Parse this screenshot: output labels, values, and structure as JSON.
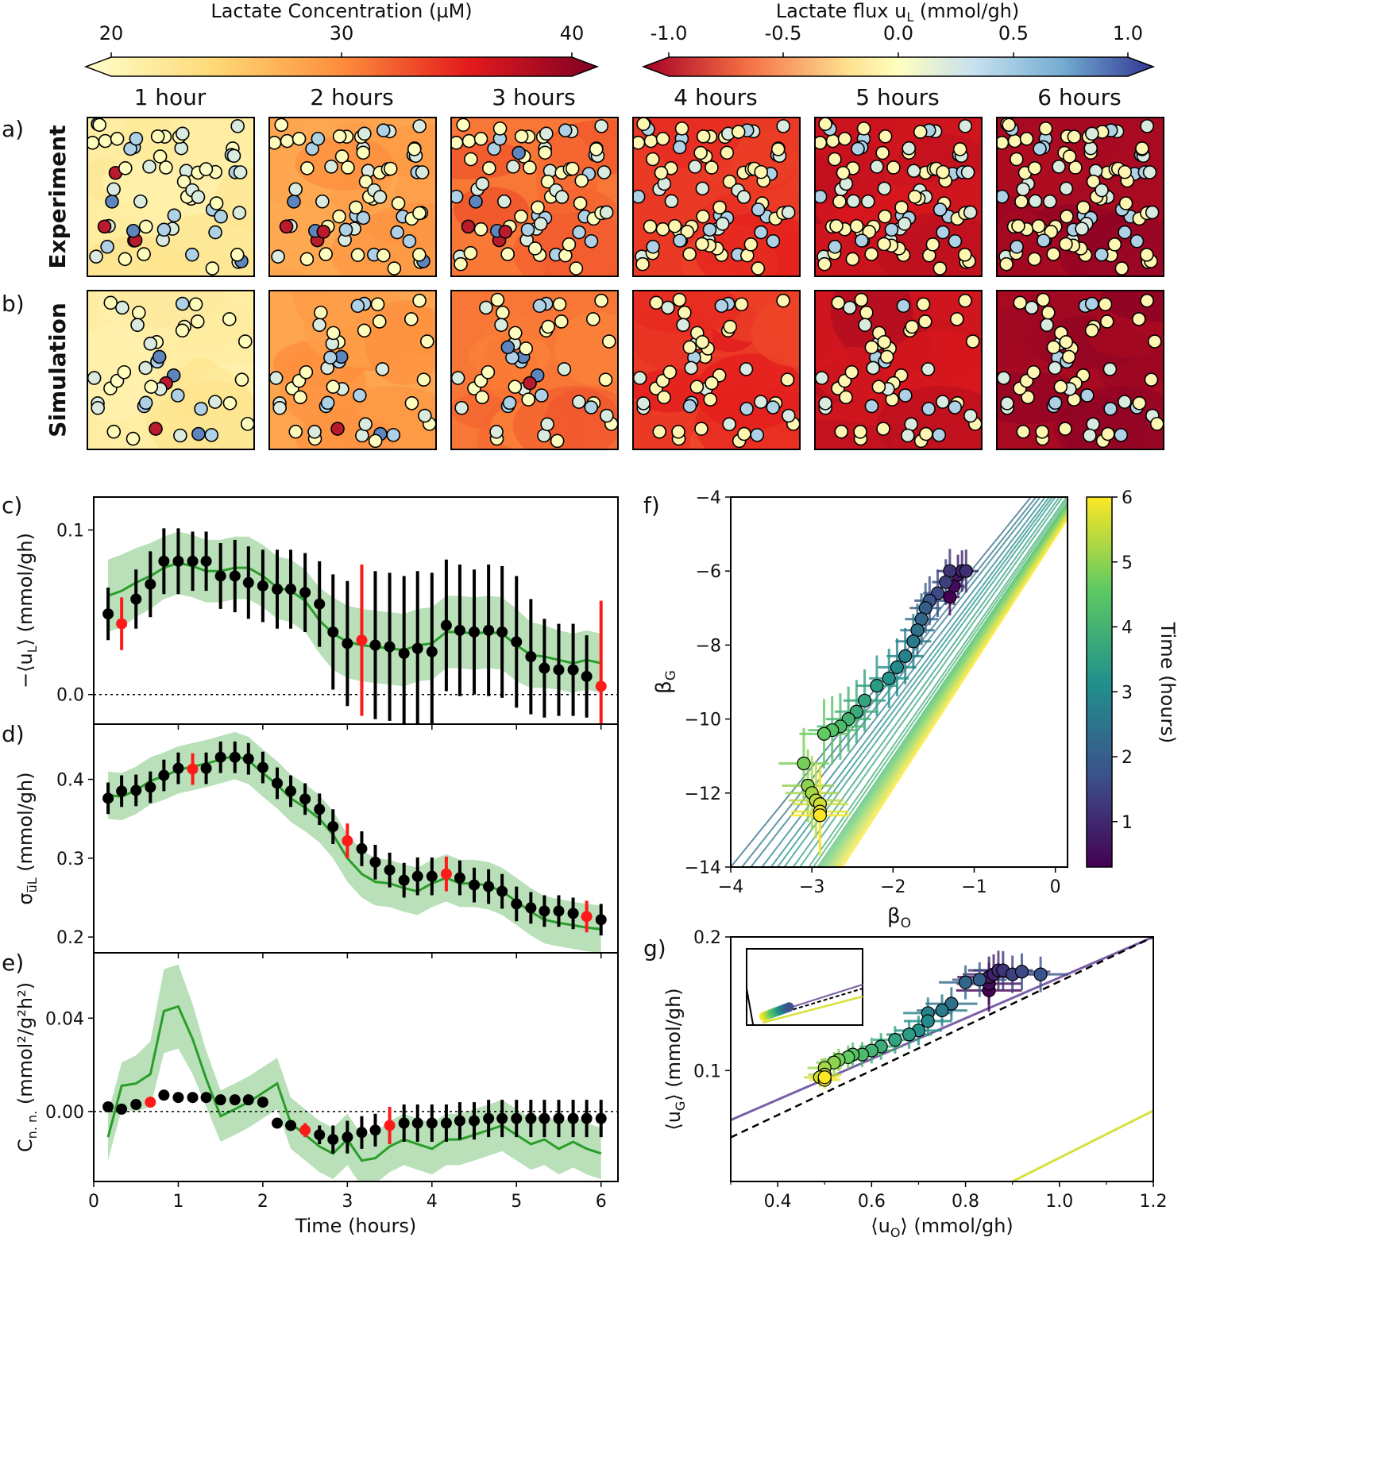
{
  "colorbars": {
    "conc": {
      "label": "Lactate Concentration (µM)",
      "ticks": [
        "20",
        "30",
        "40"
      ],
      "range": [
        20,
        40
      ]
    },
    "flux": {
      "label": "Lactate flux u",
      "label_sub": "L",
      "label_unit": " (mmol/gh)",
      "ticks": [
        "-1.0",
        "-0.5",
        "0.0",
        "0.5",
        "1.0"
      ],
      "range": [
        -1,
        1
      ]
    },
    "time": {
      "label": "Time (hours)",
      "ticks": [
        "1",
        "2",
        "3",
        "4",
        "5",
        "6"
      ]
    }
  },
  "panel_labels": {
    "a": "a)",
    "b": "b)",
    "c": "c)",
    "d": "d)",
    "e": "e)",
    "f": "f)",
    "g": "g)"
  },
  "row_labels": {
    "experiment": "Experiment",
    "simulation": "Simulation"
  },
  "snapshot_titles": [
    "1 hour",
    "2 hours",
    "3 hours",
    "4 hours",
    "5 hours",
    "6 hours"
  ],
  "snapshot_levels": [
    0.12,
    0.42,
    0.55,
    0.68,
    0.8,
    0.9
  ],
  "colors": {
    "green": "#2a9d2a",
    "green_band": "#a8d8a8",
    "red": "#ff1a1a",
    "black": "#000000",
    "purple": "#7b5fa6"
  },
  "chart_data": [
    {
      "id": "c",
      "type": "scatter",
      "ylabel": "−⟨u",
      "ylabel_sub": "L",
      "ylabel_unit": "⟩ (mmol/gh)",
      "xlabel": "",
      "ylim": [
        -0.018,
        0.12
      ],
      "xlim": [
        0,
        6.2
      ],
      "yticks": [
        "0.0",
        "0.1"
      ],
      "x": [
        0.17,
        0.33,
        0.5,
        0.67,
        0.83,
        1.0,
        1.17,
        1.33,
        1.5,
        1.67,
        1.83,
        2.0,
        2.17,
        2.33,
        2.5,
        2.67,
        2.83,
        3.0,
        3.17,
        3.33,
        3.5,
        3.67,
        3.83,
        4.0,
        4.17,
        4.33,
        4.5,
        4.67,
        4.83,
        5.0,
        5.17,
        5.33,
        5.5,
        5.67,
        5.83,
        6.0
      ],
      "y": [
        0.049,
        0.043,
        0.058,
        0.067,
        0.081,
        0.081,
        0.081,
        0.081,
        0.072,
        0.072,
        0.068,
        0.066,
        0.064,
        0.064,
        0.062,
        0.055,
        0.038,
        0.031,
        0.033,
        0.03,
        0.029,
        0.025,
        0.028,
        0.026,
        0.042,
        0.039,
        0.038,
        0.039,
        0.038,
        0.032,
        0.023,
        0.016,
        0.015,
        0.015,
        0.011,
        0.005
      ],
      "err": [
        0.016,
        0.016,
        0.018,
        0.02,
        0.02,
        0.02,
        0.018,
        0.018,
        0.02,
        0.022,
        0.022,
        0.022,
        0.024,
        0.024,
        0.024,
        0.026,
        0.035,
        0.038,
        0.046,
        0.045,
        0.045,
        0.047,
        0.047,
        0.048,
        0.04,
        0.04,
        0.038,
        0.04,
        0.04,
        0.04,
        0.035,
        0.03,
        0.028,
        0.028,
        0.025,
        0.052
      ],
      "red_indices": [
        1,
        18,
        35
      ],
      "sim_x": [
        0.17,
        0.33,
        0.5,
        0.67,
        0.83,
        1.0,
        1.17,
        1.33,
        1.5,
        1.67,
        1.83,
        2.0,
        2.17,
        2.33,
        2.5,
        2.67,
        2.83,
        3.0,
        3.17,
        3.33,
        3.5,
        3.67,
        3.83,
        4.0,
        4.17,
        4.33,
        4.5,
        4.67,
        4.83,
        5.0,
        5.17,
        5.33,
        5.5,
        5.67,
        5.83,
        6.0
      ],
      "sim_y": [
        0.06,
        0.063,
        0.068,
        0.072,
        0.077,
        0.08,
        0.078,
        0.075,
        0.075,
        0.077,
        0.077,
        0.072,
        0.065,
        0.063,
        0.057,
        0.045,
        0.037,
        0.032,
        0.03,
        0.029,
        0.028,
        0.027,
        0.03,
        0.031,
        0.038,
        0.038,
        0.037,
        0.038,
        0.037,
        0.03,
        0.024,
        0.023,
        0.021,
        0.019,
        0.021,
        0.019
      ],
      "sim_band": [
        0.022,
        0.022,
        0.021,
        0.02,
        0.019,
        0.019,
        0.019,
        0.019,
        0.019,
        0.019,
        0.019,
        0.019,
        0.019,
        0.019,
        0.019,
        0.02,
        0.022,
        0.022,
        0.022,
        0.022,
        0.022,
        0.022,
        0.022,
        0.022,
        0.022,
        0.022,
        0.022,
        0.022,
        0.022,
        0.022,
        0.02,
        0.019,
        0.018,
        0.018,
        0.018,
        0.018
      ],
      "zero_line": true
    },
    {
      "id": "d",
      "type": "scatter",
      "ylabel": "σ",
      "ylabel_sub": "u̅L",
      "ylabel_unit": " (mmol/gh)",
      "xlabel": "",
      "ylim": [
        0.18,
        0.47
      ],
      "xlim": [
        0,
        6.2
      ],
      "yticks": [
        "0.2",
        "0.3",
        "0.4"
      ],
      "x": [
        0.17,
        0.33,
        0.5,
        0.67,
        0.83,
        1.0,
        1.17,
        1.33,
        1.5,
        1.67,
        1.83,
        2.0,
        2.17,
        2.33,
        2.5,
        2.67,
        2.83,
        3.0,
        3.17,
        3.33,
        3.5,
        3.67,
        3.83,
        4.0,
        4.17,
        4.33,
        4.5,
        4.67,
        4.83,
        5.0,
        5.17,
        5.33,
        5.5,
        5.67,
        5.83,
        6.0
      ],
      "y": [
        0.376,
        0.385,
        0.386,
        0.39,
        0.405,
        0.414,
        0.413,
        0.414,
        0.428,
        0.428,
        0.426,
        0.415,
        0.395,
        0.385,
        0.375,
        0.362,
        0.34,
        0.322,
        0.312,
        0.295,
        0.285,
        0.272,
        0.277,
        0.277,
        0.28,
        0.275,
        0.266,
        0.264,
        0.258,
        0.242,
        0.237,
        0.233,
        0.233,
        0.23,
        0.226,
        0.222
      ],
      "err": [
        0.02,
        0.02,
        0.02,
        0.02,
        0.02,
        0.02,
        0.02,
        0.02,
        0.02,
        0.02,
        0.02,
        0.02,
        0.02,
        0.02,
        0.02,
        0.02,
        0.022,
        0.022,
        0.022,
        0.022,
        0.022,
        0.022,
        0.024,
        0.024,
        0.022,
        0.022,
        0.022,
        0.022,
        0.022,
        0.022,
        0.02,
        0.02,
        0.02,
        0.02,
        0.02,
        0.02
      ],
      "red_indices": [
        6,
        17,
        24,
        34
      ],
      "sim_x": [
        0.17,
        0.33,
        0.5,
        0.67,
        0.83,
        1.0,
        1.17,
        1.33,
        1.5,
        1.67,
        1.83,
        2.0,
        2.17,
        2.33,
        2.5,
        2.67,
        2.83,
        3.0,
        3.17,
        3.33,
        3.5,
        3.67,
        3.83,
        4.0,
        4.17,
        4.33,
        4.5,
        4.67,
        4.83,
        5.0,
        5.17,
        5.33,
        5.5,
        5.67,
        5.83,
        6.0
      ],
      "sim_y": [
        0.38,
        0.378,
        0.386,
        0.398,
        0.404,
        0.412,
        0.416,
        0.42,
        0.425,
        0.43,
        0.424,
        0.408,
        0.393,
        0.376,
        0.364,
        0.35,
        0.33,
        0.3,
        0.28,
        0.27,
        0.268,
        0.262,
        0.258,
        0.268,
        0.275,
        0.268,
        0.268,
        0.265,
        0.258,
        0.245,
        0.232,
        0.222,
        0.218,
        0.215,
        0.212,
        0.21
      ],
      "sim_band": [
        0.03,
        0.03,
        0.03,
        0.03,
        0.03,
        0.03,
        0.03,
        0.03,
        0.03,
        0.03,
        0.03,
        0.03,
        0.03,
        0.03,
        0.03,
        0.03,
        0.03,
        0.03,
        0.03,
        0.03,
        0.03,
        0.03,
        0.03,
        0.03,
        0.03,
        0.03,
        0.03,
        0.03,
        0.03,
        0.03,
        0.03,
        0.03,
        0.03,
        0.03,
        0.03,
        0.03
      ],
      "zero_line": false
    },
    {
      "id": "e",
      "type": "scatter",
      "ylabel": "C",
      "ylabel_sub": "n. n.",
      "ylabel_unit": " (mmol²/g²h²)",
      "xlabel": "Time (hours)",
      "ylim": [
        -0.03,
        0.068
      ],
      "xlim": [
        0,
        6.2
      ],
      "yticks": [
        "0.00",
        "0.04"
      ],
      "xticks": [
        "0",
        "1",
        "2",
        "3",
        "4",
        "5",
        "6"
      ],
      "x": [
        0.17,
        0.33,
        0.5,
        0.67,
        0.83,
        1.0,
        1.17,
        1.33,
        1.5,
        1.67,
        1.83,
        2.0,
        2.17,
        2.33,
        2.5,
        2.67,
        2.83,
        3.0,
        3.17,
        3.33,
        3.5,
        3.67,
        3.83,
        4.0,
        4.17,
        4.33,
        4.5,
        4.67,
        4.83,
        5.0,
        5.17,
        5.33,
        5.5,
        5.67,
        5.83,
        6.0
      ],
      "y": [
        0.002,
        0.001,
        0.003,
        0.004,
        0.007,
        0.006,
        0.006,
        0.006,
        0.005,
        0.005,
        0.005,
        0.004,
        -0.005,
        -0.006,
        -0.008,
        -0.01,
        -0.012,
        -0.011,
        -0.009,
        -0.008,
        -0.006,
        -0.005,
        -0.005,
        -0.005,
        -0.005,
        -0.004,
        -0.004,
        -0.003,
        -0.003,
        -0.003,
        -0.003,
        -0.003,
        -0.003,
        -0.003,
        -0.003,
        -0.003
      ],
      "err": [
        0.001,
        0.001,
        0.001,
        0.001,
        0.001,
        0.001,
        0.001,
        0.001,
        0.001,
        0.001,
        0.001,
        0.001,
        0.002,
        0.002,
        0.003,
        0.004,
        0.006,
        0.007,
        0.007,
        0.007,
        0.008,
        0.008,
        0.008,
        0.008,
        0.008,
        0.008,
        0.008,
        0.008,
        0.008,
        0.008,
        0.008,
        0.008,
        0.008,
        0.008,
        0.008,
        0.008
      ],
      "red_indices": [
        3,
        14,
        20
      ],
      "sim_x": [
        0.17,
        0.33,
        0.5,
        0.67,
        0.83,
        1.0,
        1.17,
        1.33,
        1.5,
        1.67,
        1.83,
        2.0,
        2.17,
        2.33,
        2.5,
        2.67,
        2.83,
        3.0,
        3.17,
        3.33,
        3.5,
        3.67,
        3.83,
        4.0,
        4.17,
        4.33,
        4.5,
        4.67,
        4.83,
        5.0,
        5.17,
        5.33,
        5.5,
        5.67,
        5.83,
        6.0
      ],
      "sim_y": [
        -0.011,
        0.011,
        0.012,
        0.016,
        0.043,
        0.045,
        0.031,
        0.014,
        -0.002,
        0.001,
        0.004,
        0.008,
        0.012,
        -0.005,
        -0.01,
        -0.015,
        -0.018,
        -0.012,
        -0.021,
        -0.02,
        -0.015,
        -0.012,
        -0.014,
        -0.016,
        -0.012,
        -0.012,
        -0.01,
        -0.008,
        -0.006,
        -0.01,
        -0.014,
        -0.012,
        -0.016,
        -0.013,
        -0.016,
        -0.018
      ],
      "sim_band": [
        0.01,
        0.01,
        0.012,
        0.014,
        0.018,
        0.018,
        0.015,
        0.012,
        0.011,
        0.011,
        0.011,
        0.011,
        0.011,
        0.011,
        0.011,
        0.011,
        0.011,
        0.011,
        0.011,
        0.011,
        0.011,
        0.011,
        0.011,
        0.011,
        0.011,
        0.011,
        0.011,
        0.011,
        0.011,
        0.011,
        0.011,
        0.011,
        0.011,
        0.011,
        0.011,
        0.011
      ],
      "zero_line": true
    },
    {
      "id": "f",
      "type": "scatter",
      "xlabel": "β",
      "xlabel_sub": "O",
      "ylabel": "β",
      "ylabel_sub": "G",
      "xlim": [
        -4,
        0.15
      ],
      "ylim": [
        -14,
        -4
      ],
      "xticks": [
        "−4",
        "−3",
        "−2",
        "−1",
        "0"
      ],
      "yticks": [
        "−14",
        "−12",
        "−10",
        "−8",
        "−6",
        "−4"
      ],
      "x": [
        -1.3,
        -1.25,
        -1.2,
        -1.15,
        -1.1,
        -1.3,
        -1.35,
        -1.45,
        -1.55,
        -1.6,
        -1.65,
        -1.7,
        -1.75,
        -1.85,
        -1.95,
        -2.05,
        -2.2,
        -2.35,
        -2.45,
        -2.55,
        -2.65,
        -2.75,
        -2.85,
        -3.1,
        -3.05,
        -3.0,
        -2.95,
        -2.9,
        -2.9,
        -2.9
      ],
      "y": [
        -6.7,
        -6.4,
        -6.1,
        -6.0,
        -6.0,
        -6.0,
        -6.3,
        -6.6,
        -6.8,
        -7.0,
        -7.3,
        -7.6,
        -7.9,
        -8.3,
        -8.6,
        -8.9,
        -9.1,
        -9.5,
        -9.8,
        -10.0,
        -10.2,
        -10.3,
        -10.4,
        -11.2,
        -11.8,
        -12.0,
        -12.2,
        -12.3,
        -12.5,
        -12.6
      ],
      "t": [
        0.3,
        0.5,
        0.7,
        0.9,
        1.1,
        1.2,
        1.4,
        1.6,
        1.8,
        2.0,
        2.2,
        2.4,
        2.6,
        2.8,
        3.0,
        3.2,
        3.4,
        3.6,
        3.8,
        4.0,
        4.2,
        4.4,
        4.6,
        4.8,
        5.0,
        5.2,
        5.4,
        5.6,
        5.8,
        6.0
      ],
      "curve_offsets": [
        0.0,
        -0.25,
        -0.45,
        -0.7,
        -0.9,
        -1.05,
        -1.2,
        -1.4,
        -1.55,
        -1.75,
        -1.85,
        -1.95,
        -2.0,
        -2.05,
        -2.1,
        -2.15,
        -2.2,
        -2.25,
        -2.3,
        -2.35,
        -2.4,
        -2.45,
        -2.5
      ],
      "colorbar_range": [
        0.3,
        6
      ]
    },
    {
      "id": "g",
      "type": "scatter",
      "xlabel": "⟨u",
      "xlabel_sub": "O",
      "xlabel_unit": "⟩ (mmol/gh)",
      "ylabel": "⟨u",
      "ylabel_sub": "G",
      "ylabel_unit": "⟩ (mmol/gh)",
      "xlim": [
        0.3,
        1.2
      ],
      "ylim": [
        0.017,
        0.2
      ],
      "xticks": [
        "0.4",
        "0.6",
        "0.8",
        "1.0",
        "1.2"
      ],
      "yticks": [
        "0.1",
        "0.2"
      ],
      "x": [
        0.85,
        0.85,
        0.85,
        0.86,
        0.87,
        0.88,
        0.9,
        0.92,
        0.96,
        0.83,
        0.8,
        0.77,
        0.75,
        0.72,
        0.72,
        0.7,
        0.68,
        0.65,
        0.62,
        0.6,
        0.58,
        0.56,
        0.55,
        0.53,
        0.52,
        0.5,
        0.5,
        0.49,
        0.5,
        0.5
      ],
      "y": [
        0.16,
        0.165,
        0.17,
        0.172,
        0.175,
        0.175,
        0.172,
        0.174,
        0.172,
        0.168,
        0.166,
        0.15,
        0.145,
        0.143,
        0.137,
        0.13,
        0.127,
        0.123,
        0.118,
        0.115,
        0.112,
        0.112,
        0.11,
        0.108,
        0.106,
        0.102,
        0.097,
        0.095,
        0.093,
        0.095
      ],
      "t": [
        0.3,
        0.5,
        0.7,
        0.9,
        1.1,
        1.2,
        1.4,
        1.6,
        1.8,
        2.0,
        2.2,
        2.4,
        2.6,
        2.8,
        3.0,
        3.2,
        3.4,
        3.6,
        3.8,
        4.0,
        4.2,
        4.4,
        4.6,
        4.8,
        5.0,
        5.2,
        5.4,
        5.6,
        5.8,
        6.0
      ],
      "lines": {
        "purple": [
          [
            0.3,
            0.063
          ],
          [
            1.2,
            0.2
          ]
        ],
        "dashed": [
          [
            0.3,
            0.05
          ],
          [
            1.2,
            0.2
          ]
        ],
        "yellow": [
          [
            0.9,
            0.017
          ],
          [
            1.2,
            0.07
          ]
        ]
      }
    }
  ]
}
